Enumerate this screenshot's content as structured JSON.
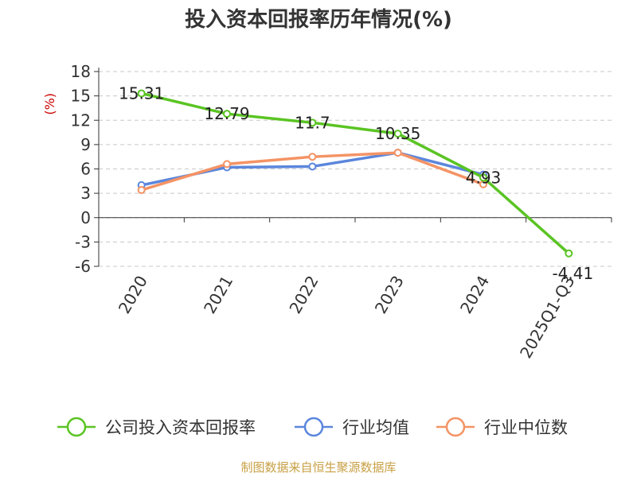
{
  "chart_data": {
    "type": "line",
    "title": "投入资本回报率历年情况(%)",
    "ylabel": "(%)",
    "xlabel": "",
    "categories": [
      "2020",
      "2021",
      "2022",
      "2023",
      "2024",
      "2025Q1-Q3"
    ],
    "ylim": [
      -6,
      18
    ],
    "yticks": [
      -6,
      -3,
      0,
      3,
      6,
      9,
      12,
      15,
      18
    ],
    "grid": true,
    "legend_position": "bottom",
    "series": [
      {
        "name": "公司投入资本回报率",
        "color": "#5ac423",
        "values": [
          15.31,
          12.79,
          11.7,
          10.35,
          4.93,
          -4.41
        ],
        "labels": [
          "15.31",
          "12.79",
          "11.7",
          "10.35",
          "4.93",
          "-4.41"
        ]
      },
      {
        "name": "行业均值",
        "color": "#5b86dc",
        "values": [
          4.0,
          6.2,
          6.3,
          8.0,
          5.3,
          null
        ]
      },
      {
        "name": "行业中位数",
        "color": "#f49365",
        "values": [
          3.4,
          6.6,
          7.5,
          8.0,
          4.1,
          null
        ]
      }
    ]
  },
  "footer": {
    "source": "制图数据来自恒生聚源数据库"
  }
}
